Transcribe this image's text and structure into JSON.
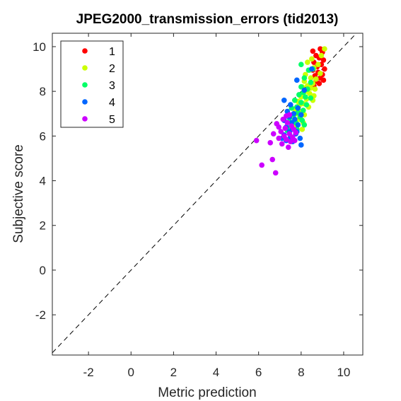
{
  "chart_data": {
    "type": "scatter",
    "title": "JPEG2000_transmission_errors (tid2013)",
    "xlabel": "Metric prediction",
    "ylabel": "Subjective score",
    "xlim": [
      -3.7,
      10.9
    ],
    "ylim": [
      -3.8,
      10.6
    ],
    "xticks": [
      -2,
      0,
      2,
      4,
      6,
      8,
      10
    ],
    "yticks": [
      -2,
      0,
      2,
      4,
      6,
      8,
      10
    ],
    "xtick_labels": [
      "-2",
      "0",
      "2",
      "4",
      "6",
      "8",
      "10"
    ],
    "ytick_labels": [
      "-2",
      "0",
      "2",
      "4",
      "6",
      "8",
      "10"
    ],
    "grid": false,
    "legend_position": "top-left",
    "reference_line": "y = x (dashed)",
    "series": [
      {
        "name": "1",
        "color": "#ff0000",
        "points": [
          [
            8.55,
            9.8
          ],
          [
            8.9,
            9.9
          ],
          [
            9.0,
            9.75
          ],
          [
            8.7,
            9.6
          ],
          [
            8.85,
            9.5
          ],
          [
            9.05,
            9.4
          ],
          [
            8.6,
            9.3
          ],
          [
            8.95,
            9.2
          ],
          [
            8.75,
            9.1
          ],
          [
            9.1,
            9.0
          ],
          [
            8.55,
            8.95
          ],
          [
            8.8,
            8.85
          ],
          [
            9.0,
            8.75
          ],
          [
            8.65,
            8.7
          ],
          [
            8.9,
            8.6
          ],
          [
            9.05,
            8.5
          ],
          [
            8.7,
            8.45
          ],
          [
            8.85,
            8.35
          ],
          [
            8.6,
            8.25
          ]
        ]
      },
      {
        "name": "2",
        "color": "#ccff00",
        "points": [
          [
            9.1,
            9.9
          ],
          [
            8.95,
            9.6
          ],
          [
            8.5,
            9.45
          ],
          [
            8.3,
            9.3
          ],
          [
            8.8,
            9.2
          ],
          [
            8.6,
            9.05
          ],
          [
            8.4,
            8.95
          ],
          [
            8.9,
            8.8
          ],
          [
            8.2,
            8.75
          ],
          [
            8.45,
            8.6
          ],
          [
            8.7,
            8.55
          ],
          [
            8.15,
            8.45
          ],
          [
            8.55,
            8.35
          ],
          [
            8.3,
            8.25
          ],
          [
            8.05,
            8.2
          ],
          [
            8.45,
            8.15
          ],
          [
            8.65,
            8.1
          ],
          [
            8.2,
            8.0
          ],
          [
            8.4,
            7.9
          ],
          [
            8.6,
            7.8
          ],
          [
            8.0,
            7.75
          ],
          [
            8.25,
            7.65
          ],
          [
            8.55,
            7.6
          ],
          [
            7.85,
            7.55
          ],
          [
            8.1,
            7.45
          ],
          [
            7.9,
            7.35
          ],
          [
            8.35,
            7.3
          ],
          [
            7.7,
            7.2
          ],
          [
            8.0,
            7.1
          ],
          [
            7.8,
            7.0
          ],
          [
            8.15,
            6.95
          ],
          [
            7.6,
            6.9
          ],
          [
            7.9,
            6.75
          ],
          [
            8.1,
            6.6
          ],
          [
            7.65,
            6.55
          ],
          [
            7.75,
            6.4
          ],
          [
            8.05,
            6.3
          ]
        ]
      },
      {
        "name": "3",
        "color": "#00ff66",
        "points": [
          [
            8.0,
            9.2
          ],
          [
            8.55,
            9.0
          ],
          [
            8.35,
            8.95
          ],
          [
            8.15,
            8.6
          ],
          [
            8.45,
            8.4
          ],
          [
            8.0,
            8.2
          ],
          [
            8.3,
            8.1
          ],
          [
            8.1,
            7.95
          ],
          [
            7.9,
            7.85
          ],
          [
            8.2,
            7.75
          ],
          [
            8.45,
            7.7
          ],
          [
            7.7,
            7.6
          ],
          [
            8.0,
            7.5
          ],
          [
            8.25,
            7.4
          ],
          [
            7.8,
            7.3
          ],
          [
            7.55,
            7.25
          ],
          [
            8.1,
            7.15
          ],
          [
            7.85,
            7.05
          ],
          [
            7.65,
            6.95
          ],
          [
            7.95,
            6.85
          ],
          [
            7.45,
            6.8
          ],
          [
            8.05,
            6.7
          ],
          [
            7.75,
            6.6
          ],
          [
            8.15,
            6.5
          ],
          [
            7.5,
            6.4
          ],
          [
            7.8,
            6.3
          ],
          [
            7.35,
            6.25
          ]
        ]
      },
      {
        "name": "4",
        "color": "#0066ff",
        "points": [
          [
            8.5,
            9.0
          ],
          [
            7.8,
            8.5
          ],
          [
            8.15,
            8.05
          ],
          [
            7.2,
            7.6
          ],
          [
            7.5,
            7.4
          ],
          [
            7.85,
            7.25
          ],
          [
            7.35,
            7.1
          ],
          [
            7.65,
            7.0
          ],
          [
            8.0,
            6.95
          ],
          [
            7.45,
            6.85
          ],
          [
            7.7,
            6.75
          ],
          [
            7.2,
            6.7
          ],
          [
            7.55,
            6.6
          ],
          [
            7.85,
            6.5
          ],
          [
            7.3,
            6.4
          ],
          [
            7.6,
            6.3
          ],
          [
            7.45,
            6.2
          ],
          [
            7.75,
            6.1
          ],
          [
            7.2,
            6.05
          ],
          [
            7.5,
            5.95
          ],
          [
            7.95,
            5.9
          ],
          [
            7.3,
            5.8
          ],
          [
            7.6,
            5.75
          ],
          [
            8.0,
            5.6
          ],
          [
            7.1,
            5.9
          ],
          [
            7.8,
            6.2
          ]
        ]
      },
      {
        "name": "5",
        "color": "#cc00ff",
        "points": [
          [
            5.9,
            5.8
          ],
          [
            6.15,
            4.7
          ],
          [
            6.55,
            5.7
          ],
          [
            6.65,
            4.95
          ],
          [
            6.8,
            4.35
          ],
          [
            6.7,
            6.1
          ],
          [
            6.85,
            6.55
          ],
          [
            6.95,
            5.9
          ],
          [
            7.05,
            6.2
          ],
          [
            7.1,
            5.65
          ],
          [
            7.2,
            6.0
          ],
          [
            7.25,
            6.35
          ],
          [
            7.3,
            5.85
          ],
          [
            7.35,
            6.6
          ],
          [
            7.4,
            5.5
          ],
          [
            7.45,
            6.1
          ],
          [
            7.5,
            5.75
          ],
          [
            7.55,
            6.45
          ],
          [
            7.6,
            5.95
          ],
          [
            7.65,
            6.3
          ],
          [
            7.7,
            5.8
          ],
          [
            7.3,
            6.9
          ],
          [
            7.15,
            6.75
          ],
          [
            7.45,
            6.95
          ],
          [
            6.95,
            6.4
          ],
          [
            7.75,
            6.15
          ]
        ]
      }
    ]
  }
}
